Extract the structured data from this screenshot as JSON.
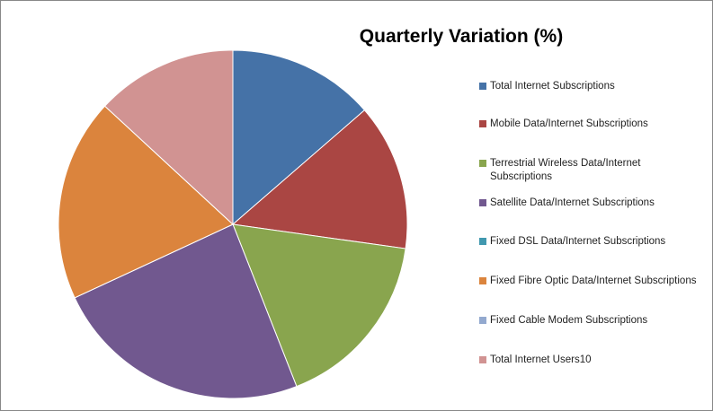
{
  "chart_data": {
    "type": "pie",
    "title": "Quarterly  Variation (%)",
    "categories": [
      "Total Internet Subscriptions",
      "Mobile Data/Internet Subscriptions",
      "Terrestrial Wireless Data/Internet Subscriptions",
      "Satellite Data/Internet Subscriptions",
      "Fixed DSL Data/Internet Subscriptions",
      "Fixed Fibre Optic Data/Internet Subscriptions",
      "Fixed Cable Modem Subscriptions",
      "Total Internet Users10"
    ],
    "values": [
      13.6,
      13.6,
      16.8,
      24.0,
      0,
      18.8,
      0,
      13.1
    ],
    "colors": [
      "#4572a7",
      "#aa4643",
      "#89a54e",
      "#71588f",
      "#4198af",
      "#db843d",
      "#93a9cf",
      "#d19392"
    ],
    "legend": "right"
  }
}
